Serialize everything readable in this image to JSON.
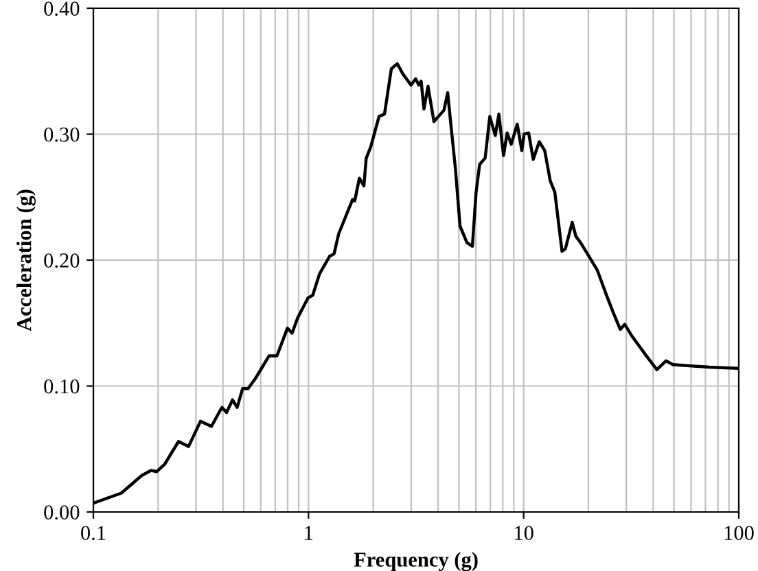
{
  "chart_data": {
    "type": "line",
    "xlabel": "Frequency (g)",
    "ylabel": "Acceleration (g)",
    "log": "x",
    "grid": true,
    "color": "#000000",
    "x": [
      0.1,
      0.1349,
      0.168,
      0.1854,
      0.1966,
      0.2147,
      0.2487,
      0.2769,
      0.3147,
      0.354,
      0.3866,
      0.3964,
      0.4161,
      0.4433,
      0.466,
      0.4941,
      0.524,
      0.5665,
      0.6561,
      0.7134,
      0.798,
      0.8388,
      0.8895,
      0.9947,
      1.046,
      1.125,
      1.253,
      1.315,
      1.382,
      1.602,
      1.64,
      1.723,
      1.809,
      1.855,
      1.947,
      2.127,
      2.256,
      2.427,
      2.586,
      2.742,
      2.995,
      3.149,
      3.258,
      3.34,
      3.439,
      3.594,
      3.828,
      4.262,
      4.435,
      4.587,
      4.822,
      5.061,
      5.447,
      5.777,
      6.012,
      6.245,
      6.623,
      6.962,
      7.383,
      7.671,
      8.064,
      8.379,
      8.756,
      9.341,
      9.806,
      10.05,
      10.55,
      11.08,
      11.82,
      12.53,
      13.29,
      13.96,
      15.08,
      15.63,
      16.82,
      17.48,
      18.53,
      20.44,
      22.0,
      24.29,
      26.14,
      28.12,
      29.52,
      31.78,
      36.81,
      41.59,
      45.88,
      49.38,
      73.11,
      100
    ],
    "values": [
      0.007,
      0.015,
      0.029,
      0.033,
      0.032,
      0.038,
      0.056,
      0.052,
      0.072,
      0.068,
      0.08,
      0.083,
      0.079,
      0.089,
      0.083,
      0.098,
      0.098,
      0.106,
      0.124,
      0.124,
      0.146,
      0.142,
      0.154,
      0.17,
      0.172,
      0.189,
      0.203,
      0.205,
      0.221,
      0.248,
      0.247,
      0.265,
      0.259,
      0.281,
      0.29,
      0.314,
      0.316,
      0.352,
      0.356,
      0.348,
      0.339,
      0.344,
      0.339,
      0.342,
      0.32,
      0.338,
      0.31,
      0.319,
      0.333,
      0.308,
      0.272,
      0.227,
      0.214,
      0.211,
      0.254,
      0.276,
      0.281,
      0.314,
      0.299,
      0.316,
      0.283,
      0.301,
      0.292,
      0.308,
      0.287,
      0.3,
      0.301,
      0.28,
      0.294,
      0.287,
      0.263,
      0.254,
      0.207,
      0.209,
      0.23,
      0.219,
      0.213,
      0.201,
      0.192,
      0.172,
      0.158,
      0.145,
      0.149,
      0.14,
      0.125,
      0.113,
      0.12,
      0.117,
      0.115,
      0.114
    ],
    "xlim": [
      0.1,
      100
    ],
    "xticks": [
      0.1,
      1,
      10,
      100
    ],
    "ylim": [
      0,
      0.4
    ],
    "yticks": [
      {
        "value": 0,
        "label": "0.00"
      },
      {
        "value": 0.1,
        "label": "0.10"
      },
      {
        "value": 0.2,
        "label": "0.20"
      },
      {
        "value": 0.3,
        "label": "0.30"
      },
      {
        "value": 0.4,
        "label": "0.40"
      }
    ]
  }
}
